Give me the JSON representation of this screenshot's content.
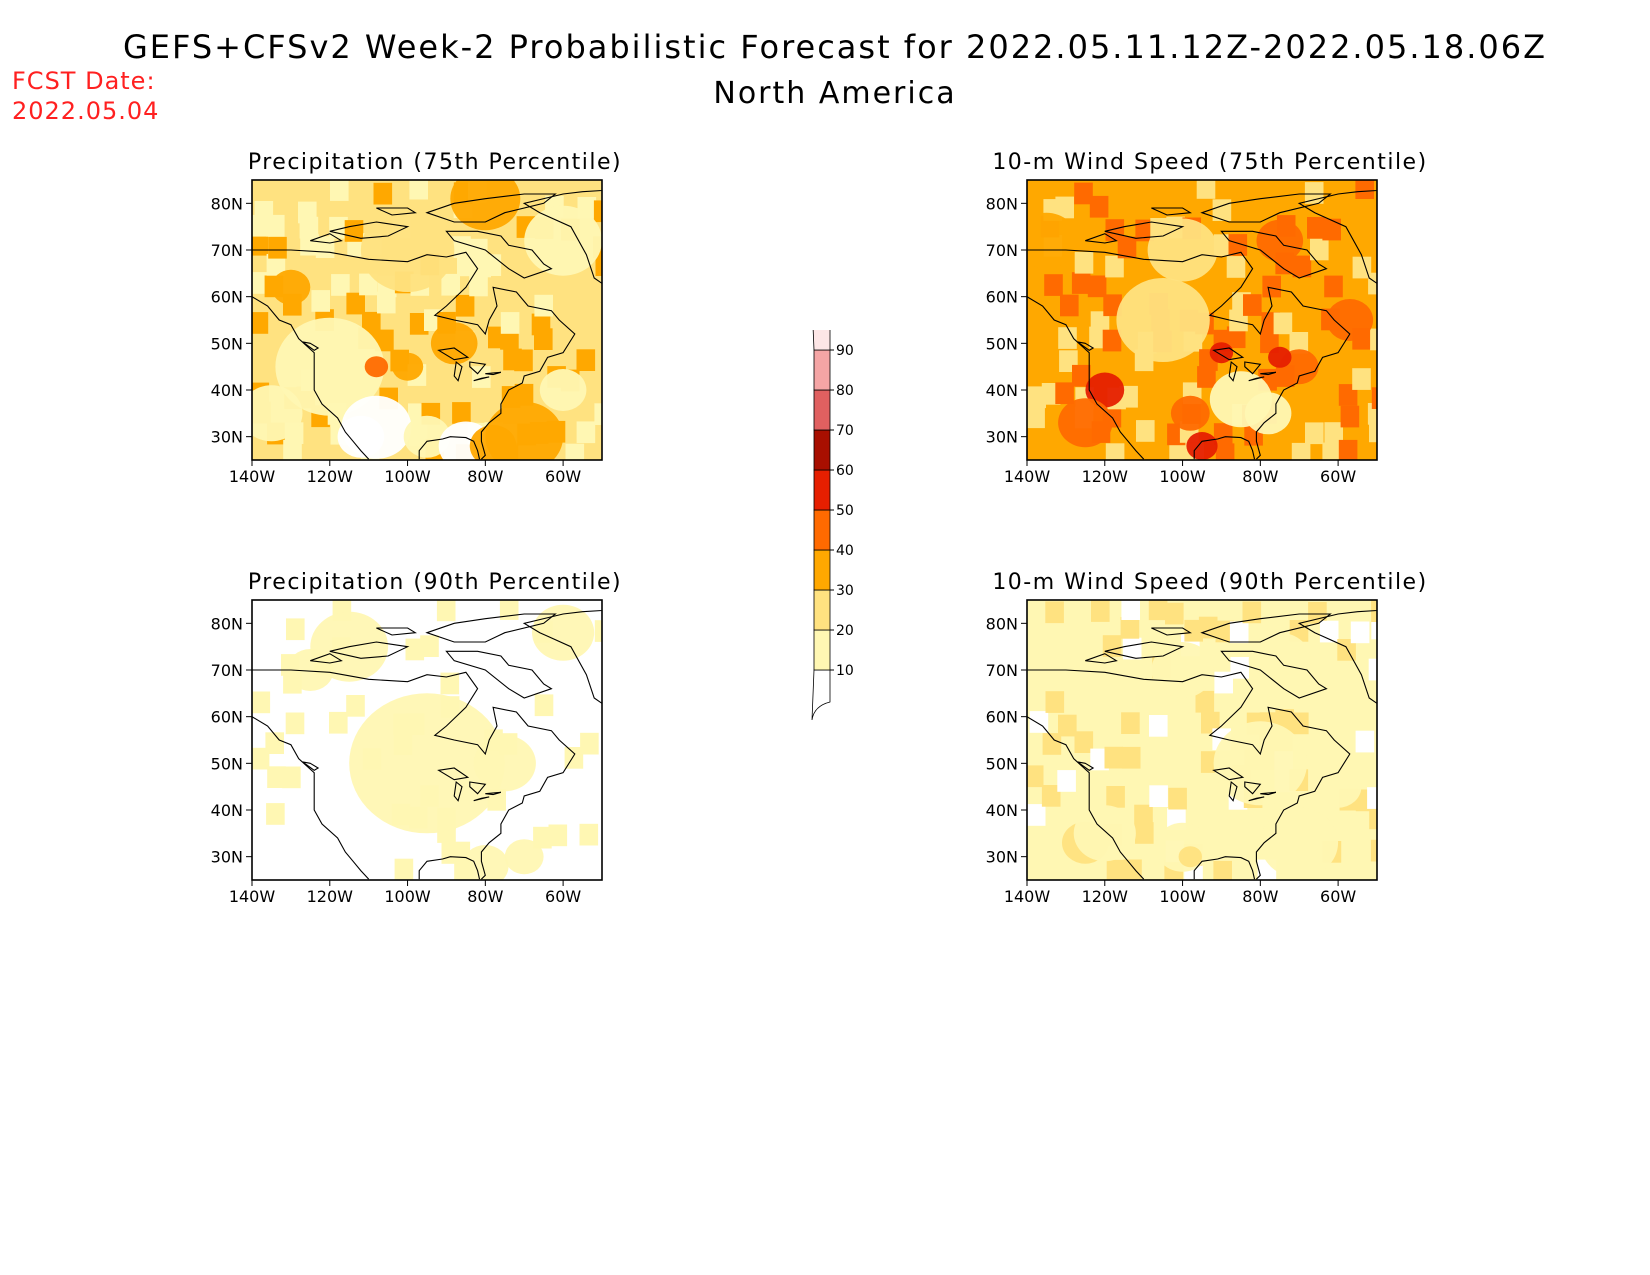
{
  "header": {
    "title": "GEFS+CFSv2 Week-2 Probabilistic Forecast for 2022.05.11.12Z-2022.05.18.06Z",
    "region": "North America",
    "fcst_date_label": "FCST Date:",
    "fcst_date_value": "2022.05.04"
  },
  "colors": {
    "title_red": "#ff2020",
    "levels": [
      "#ffffff",
      "#fff7b3",
      "#ffe280",
      "#ffa800",
      "#ff6a00",
      "#e61f00",
      "#a80f00",
      "#e06060",
      "#f5a5a5",
      "#fde6e6"
    ]
  },
  "colorbar": {
    "levels": [
      "10",
      "20",
      "30",
      "40",
      "50",
      "60",
      "70",
      "80",
      "90"
    ]
  },
  "axes": {
    "lon_labels": [
      "140W",
      "120W",
      "100W",
      "80W",
      "60W"
    ],
    "lat_labels": [
      "80N",
      "70N",
      "60N",
      "50N",
      "40N",
      "30N"
    ]
  },
  "panels": [
    {
      "id": "precip75",
      "title": "Precipitation (75th Percentile)",
      "base_level": 2
    },
    {
      "id": "wind75",
      "title": "10-m Wind Speed (75th Percentile)",
      "base_level": 3
    },
    {
      "id": "precip90",
      "title": "Precipitation (90th Percentile)",
      "base_level": 0
    },
    {
      "id": "wind90",
      "title": "10-m Wind Speed (90th Percentile)",
      "base_level": 1
    }
  ]
}
